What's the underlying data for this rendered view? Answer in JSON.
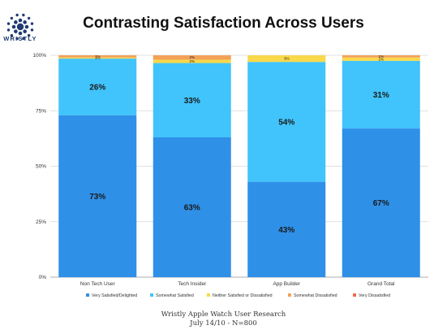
{
  "brand": {
    "name": "WRISTLY",
    "dot_color": "#1f3b73"
  },
  "footer": {
    "line1": "Wristly Apple Watch User Research",
    "line2": "July 14/10 - N=800"
  },
  "chart_data": {
    "type": "bar",
    "stacked": true,
    "title": "Contrasting Satisfaction Across Users",
    "xlabel": "",
    "ylabel": "",
    "ylim": [
      0,
      1
    ],
    "yticks": [
      "0%",
      "25%",
      "50%",
      "75%",
      "100%"
    ],
    "legend_position": "bottom",
    "categories": [
      "Non Tech User",
      "Tech Insider",
      "App Builder",
      "Grand Total"
    ],
    "series": [
      {
        "name": "Very Satisfied/Delighted",
        "color": "#2f90e8",
        "values": [
          0.73,
          0.63,
          0.43,
          0.67
        ],
        "labels": [
          "73%",
          "63%",
          "43%",
          "67%"
        ]
      },
      {
        "name": "Somewhat Satisfied",
        "color": "#40c4fb",
        "values": [
          0.255,
          0.335,
          0.54,
          0.305
        ],
        "labels": [
          "26%",
          "33%",
          "54%",
          "31%"
        ]
      },
      {
        "name": "Neither Satisfied or Dissatisfied",
        "color": "#f9d84a",
        "values": [
          0.005,
          0.015,
          0.03,
          0.015
        ],
        "labels": [
          "1%",
          "2%",
          "3%",
          "2%"
        ]
      },
      {
        "name": "Somewhat Dissatisfied",
        "color": "#f2a259",
        "values": [
          0.01,
          0.02,
          0,
          0.01
        ],
        "labels": [
          "1%",
          "2%",
          "",
          "1%"
        ]
      },
      {
        "name": "Very Dissatisfied",
        "color": "#ef6a4c",
        "values": [
          0,
          0,
          0,
          0
        ],
        "labels": [
          "",
          "",
          "",
          ""
        ]
      }
    ]
  }
}
